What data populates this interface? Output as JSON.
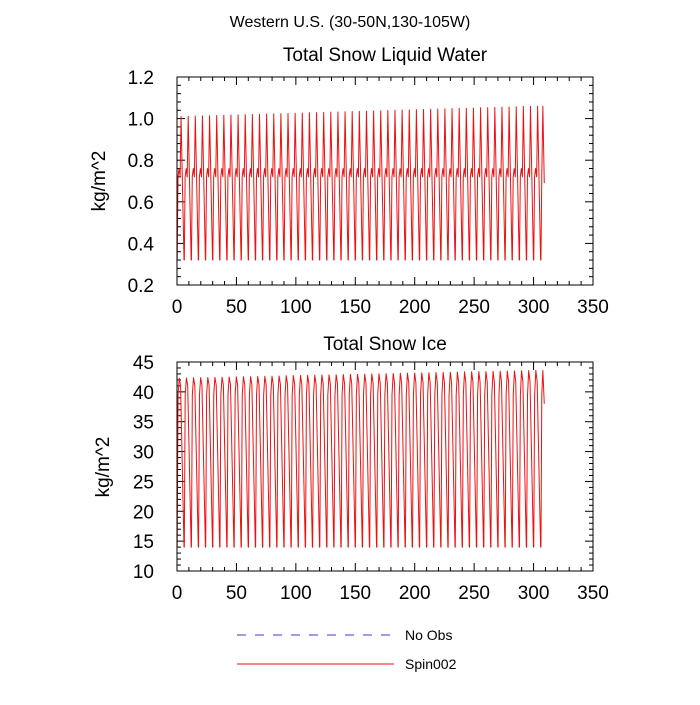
{
  "figure": {
    "title": "Western U.S. (30-50N,130-105W)"
  },
  "legend": {
    "placement": "bottom-center",
    "entries": [
      {
        "label": "No Obs",
        "color": "#3b3bd6",
        "style": "dashed"
      },
      {
        "label": "Spin002",
        "color": "#ee1111",
        "style": "solid"
      }
    ]
  },
  "chart_data": [
    {
      "type": "line",
      "title": "Total Snow Liquid Water",
      "xlabel": "",
      "ylabel": "kg/m^2",
      "xlim": [
        0,
        350
      ],
      "ylim": [
        0.2,
        1.2
      ],
      "xticks": [
        0,
        50,
        100,
        150,
        200,
        250,
        300,
        350
      ],
      "yticks": [
        0.2,
        0.4,
        0.6,
        0.8,
        1.0,
        1.2
      ],
      "ytick_labels": [
        "0.2",
        "0.4",
        "0.6",
        "0.8",
        "1.0",
        "1.2"
      ],
      "grid": false,
      "series": [
        {
          "name": "Spin002",
          "color": "#ee1111",
          "pattern": "periodic",
          "period": 6,
          "x_start": 0,
          "x_end": 309,
          "initial_value": 0.55,
          "trough": 0.32,
          "plateau": 0.72,
          "plateau_bump": 0.76,
          "peak_start": 1.01,
          "peak_end": 1.06,
          "end_value": 0.69
        }
      ]
    },
    {
      "type": "line",
      "title": "Total Snow Ice",
      "xlabel": "",
      "ylabel": "kg/m^2",
      "xlim": [
        0,
        350
      ],
      "ylim": [
        10,
        45
      ],
      "xticks": [
        0,
        50,
        100,
        150,
        200,
        250,
        300,
        350
      ],
      "yticks": [
        10,
        15,
        20,
        25,
        30,
        35,
        40,
        45
      ],
      "ytick_labels": [
        "10",
        "15",
        "20",
        "25",
        "30",
        "35",
        "40",
        "45"
      ],
      "grid": false,
      "series": [
        {
          "name": "Spin002",
          "color": "#ee1111",
          "pattern": "periodic",
          "period": 6,
          "x_start": 0,
          "x_end": 309,
          "initial_value": 27,
          "trough": 14,
          "plateau": 39.5,
          "peak_start": 42.3,
          "peak_end": 43.6,
          "end_value": 38
        }
      ]
    }
  ]
}
